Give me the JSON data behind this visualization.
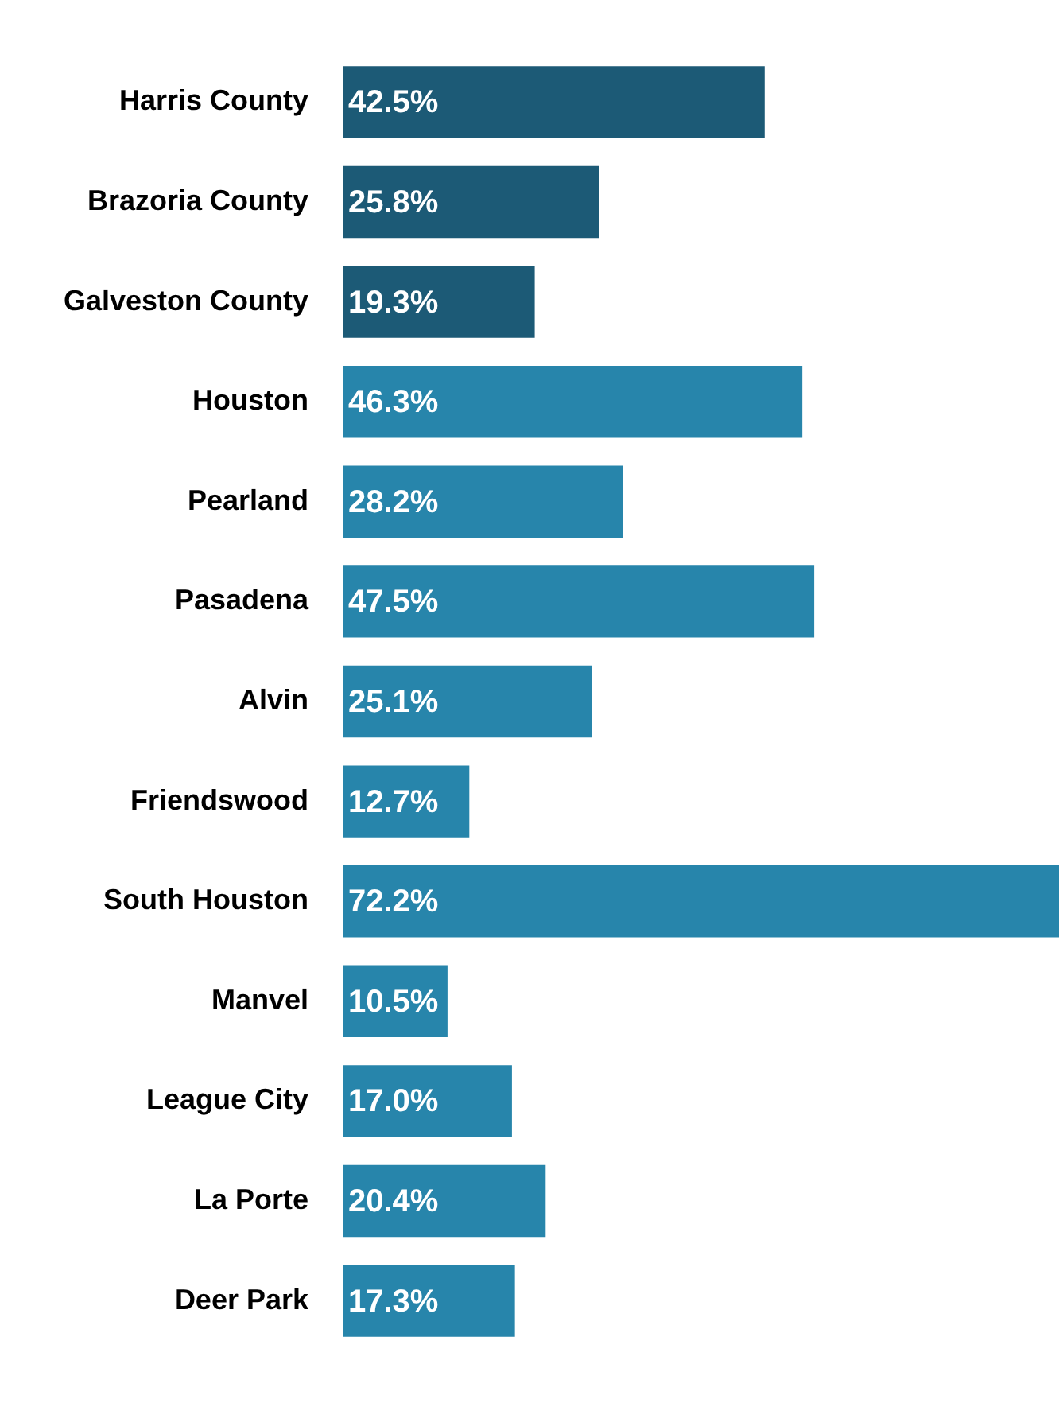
{
  "chart_data": {
    "type": "bar",
    "orientation": "horizontal",
    "categories": [
      "Harris County",
      "Brazoria County",
      "Galveston County",
      "Houston",
      "Pearland",
      "Pasadena",
      "Alvin",
      "Friendswood",
      "South Houston",
      "Manvel",
      "League City",
      "La Porte",
      "Deer Park"
    ],
    "values": [
      42.5,
      25.8,
      19.3,
      46.3,
      28.2,
      47.5,
      25.1,
      12.7,
      72.2,
      10.5,
      17.0,
      20.4,
      17.3
    ],
    "value_labels": [
      "42.5%",
      "25.8%",
      "19.3%",
      "46.3%",
      "28.2%",
      "47.5%",
      "25.1%",
      "12.7%",
      "72.2%",
      "10.5%",
      "17.0%",
      "20.4%",
      "17.3%"
    ],
    "colors": [
      "#1c5a76",
      "#1c5a76",
      "#1c5a76",
      "#2785ab",
      "#2785ab",
      "#2785ab",
      "#2785ab",
      "#2785ab",
      "#2785ab",
      "#2785ab",
      "#2785ab",
      "#2785ab",
      "#2785ab"
    ],
    "grid": false,
    "legend": false
  }
}
